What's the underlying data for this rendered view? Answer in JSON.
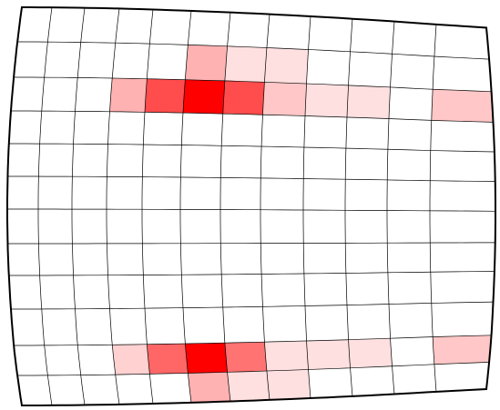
{
  "grid": {
    "columns": 12,
    "rows": 12,
    "cell_fill_base": "#ff0000",
    "grid_color": "#000000",
    "background": "#ffffff"
  },
  "cells": [
    {
      "row": 1,
      "col": 5,
      "intensity": 0.3
    },
    {
      "row": 1,
      "col": 6,
      "intensity": 0.12
    },
    {
      "row": 1,
      "col": 7,
      "intensity": 0.12
    },
    {
      "row": 2,
      "col": 3,
      "intensity": 0.3
    },
    {
      "row": 2,
      "col": 4,
      "intensity": 0.7
    },
    {
      "row": 2,
      "col": 5,
      "intensity": 1.0
    },
    {
      "row": 2,
      "col": 6,
      "intensity": 0.7
    },
    {
      "row": 2,
      "col": 7,
      "intensity": 0.22
    },
    {
      "row": 2,
      "col": 8,
      "intensity": 0.12
    },
    {
      "row": 2,
      "col": 9,
      "intensity": 0.12
    },
    {
      "row": 2,
      "col": 11,
      "intensity": 0.22
    },
    {
      "row": 10,
      "col": 3,
      "intensity": 0.18
    },
    {
      "row": 10,
      "col": 4,
      "intensity": 0.6
    },
    {
      "row": 10,
      "col": 5,
      "intensity": 1.0
    },
    {
      "row": 10,
      "col": 6,
      "intensity": 0.55
    },
    {
      "row": 10,
      "col": 7,
      "intensity": 0.12
    },
    {
      "row": 10,
      "col": 8,
      "intensity": 0.12
    },
    {
      "row": 10,
      "col": 9,
      "intensity": 0.12
    },
    {
      "row": 10,
      "col": 11,
      "intensity": 0.22
    },
    {
      "row": 11,
      "col": 5,
      "intensity": 0.3
    },
    {
      "row": 11,
      "col": 6,
      "intensity": 0.12
    },
    {
      "row": 11,
      "col": 7,
      "intensity": 0.12
    }
  ]
}
